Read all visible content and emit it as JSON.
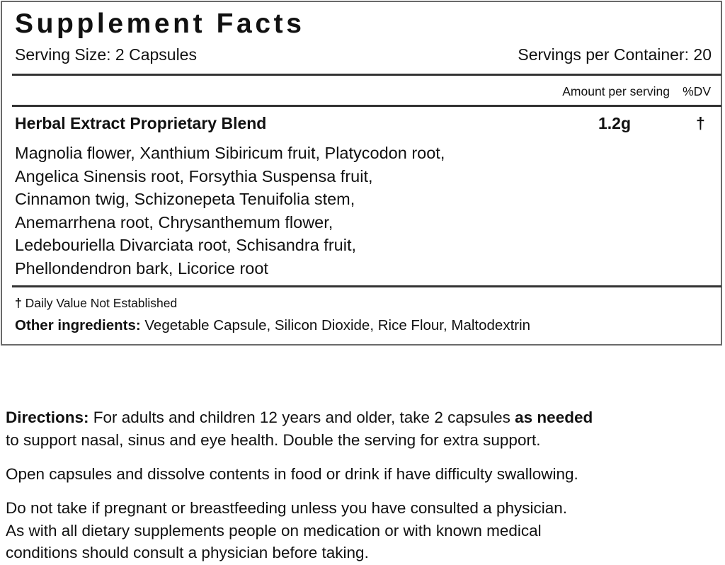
{
  "facts": {
    "title": "Supplement Facts",
    "serving_size": "Serving Size: 2 Capsules",
    "servings_per_container": "Servings per Container: 20",
    "amount_header": "Amount per serving",
    "dv_header": "%DV",
    "blend_name": "Herbal Extract Proprietary Blend",
    "blend_amount": "1.2g",
    "blend_dv": "†",
    "ingredient_lines": [
      "Magnolia flower,  Xanthium Sibiricum fruit,  Platycodon root,",
      "Angelica Sinensis root,  Forsythia Suspensa fruit,",
      "Cinnamon twig,  Schizonepeta Tenuifolia stem,",
      "Anemarrhena root,  Chrysanthemum flower,",
      "Ledebouriella Divarciata root,  Schisandra fruit,",
      "Phellondendron bark,  Licorice root"
    ],
    "dv_note_symbol": "†",
    "dv_note": "Daily Value Not Established",
    "other_label": "Other ingredients:",
    "other_value": " Vegetable Capsule, Silicon Dioxide, Rice Flour, Maltodextrin"
  },
  "directions": {
    "label": "Directions:",
    "text1": " For adults and children 12 years and older, take 2 capsules ",
    "emphasis": "as needed",
    "text2": "to support nasal, sinus and eye health. Double the serving for extra support.",
    "paragraph2": "Open capsules and dissolve contents in food or drink if have difficulty swallowing.",
    "paragraph3_lines": [
      "Do not take if pregnant or breastfeeding unless you have consulted a physician.",
      "As with all dietary supplements people on medication or with known medical",
      "conditions should consult a physician before taking."
    ]
  },
  "colors": {
    "border": "#6a6a6a",
    "text": "#111111"
  }
}
